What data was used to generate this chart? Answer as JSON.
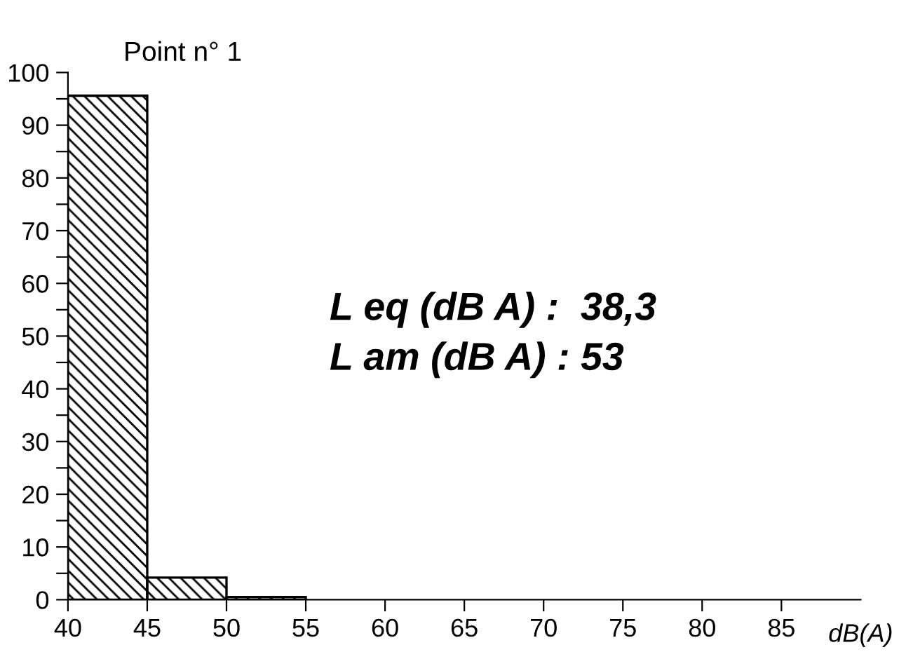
{
  "chart_data": {
    "type": "histogram",
    "title": "Point n° 1",
    "xlabel": "dB(A)",
    "bins": [
      40,
      45,
      50,
      55
    ],
    "values": [
      95.6,
      4.2,
      0.5
    ],
    "color": "#000000",
    "xlim": [
      40,
      90
    ],
    "xticks": [
      40,
      45,
      50,
      55,
      60,
      65,
      70,
      75,
      80,
      85
    ],
    "ylim": [
      0,
      100
    ],
    "yticks": [
      0,
      {
        "value": 5,
        "label": null
      },
      10,
      {
        "value": 15,
        "label": null
      },
      20,
      {
        "value": 25,
        "label": null
      },
      30,
      {
        "value": 35,
        "label": null
      },
      40,
      {
        "value": 45,
        "label": null
      },
      50,
      {
        "value": 55,
        "label": null
      },
      60,
      {
        "value": 65,
        "label": null
      },
      70,
      {
        "value": 75,
        "label": null
      },
      80,
      {
        "value": 85,
        "label": null
      },
      90,
      {
        "value": 95,
        "label": null
      },
      100
    ],
    "annotations": [
      "L eq (dB A) :  38,3",
      "L am (dB A) : 53"
    ]
  }
}
